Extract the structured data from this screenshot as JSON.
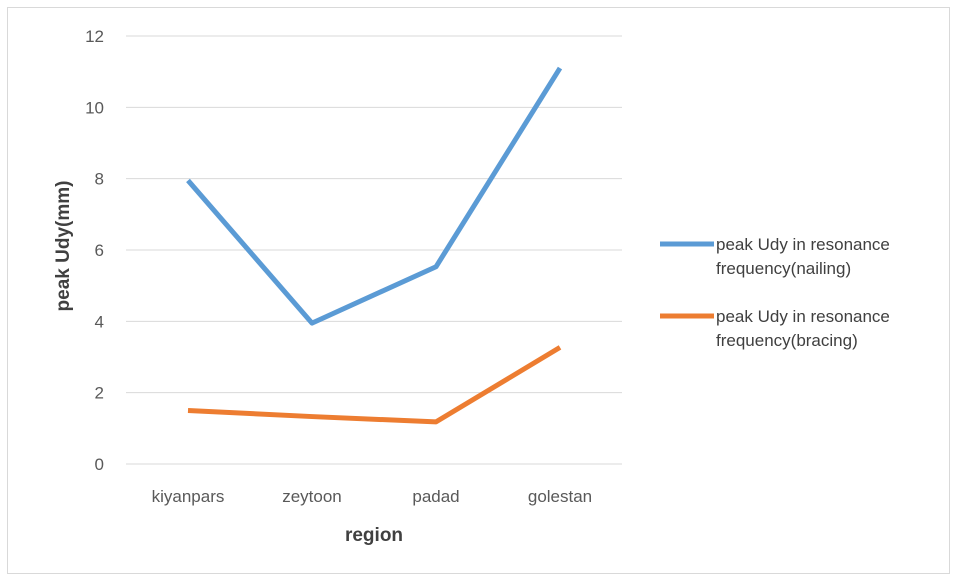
{
  "chart_data": {
    "type": "line",
    "categories": [
      "kiyanpars",
      "zeytoon",
      "padad",
      "golestan"
    ],
    "series": [
      {
        "name": "peak Udy in resonance frequency(nailing)",
        "name_lines": [
          "peak Udy in resonance",
          "frequency(nailing)"
        ],
        "values": [
          7.95,
          3.95,
          5.53,
          11.1
        ],
        "color": "#5b9bd5"
      },
      {
        "name": "peak Udy in resonance frequency(bracing)",
        "name_lines": [
          "peak Udy in resonance",
          "frequency(bracing)"
        ],
        "values": [
          1.5,
          1.33,
          1.18,
          3.27
        ],
        "color": "#ed7d31"
      }
    ],
    "xlabel": "region",
    "ylabel": "peak Udy(mm)",
    "ylim": [
      0,
      12
    ],
    "yticks": [
      0,
      2,
      4,
      6,
      8,
      10,
      12
    ],
    "grid": true,
    "legend_position": "right"
  }
}
